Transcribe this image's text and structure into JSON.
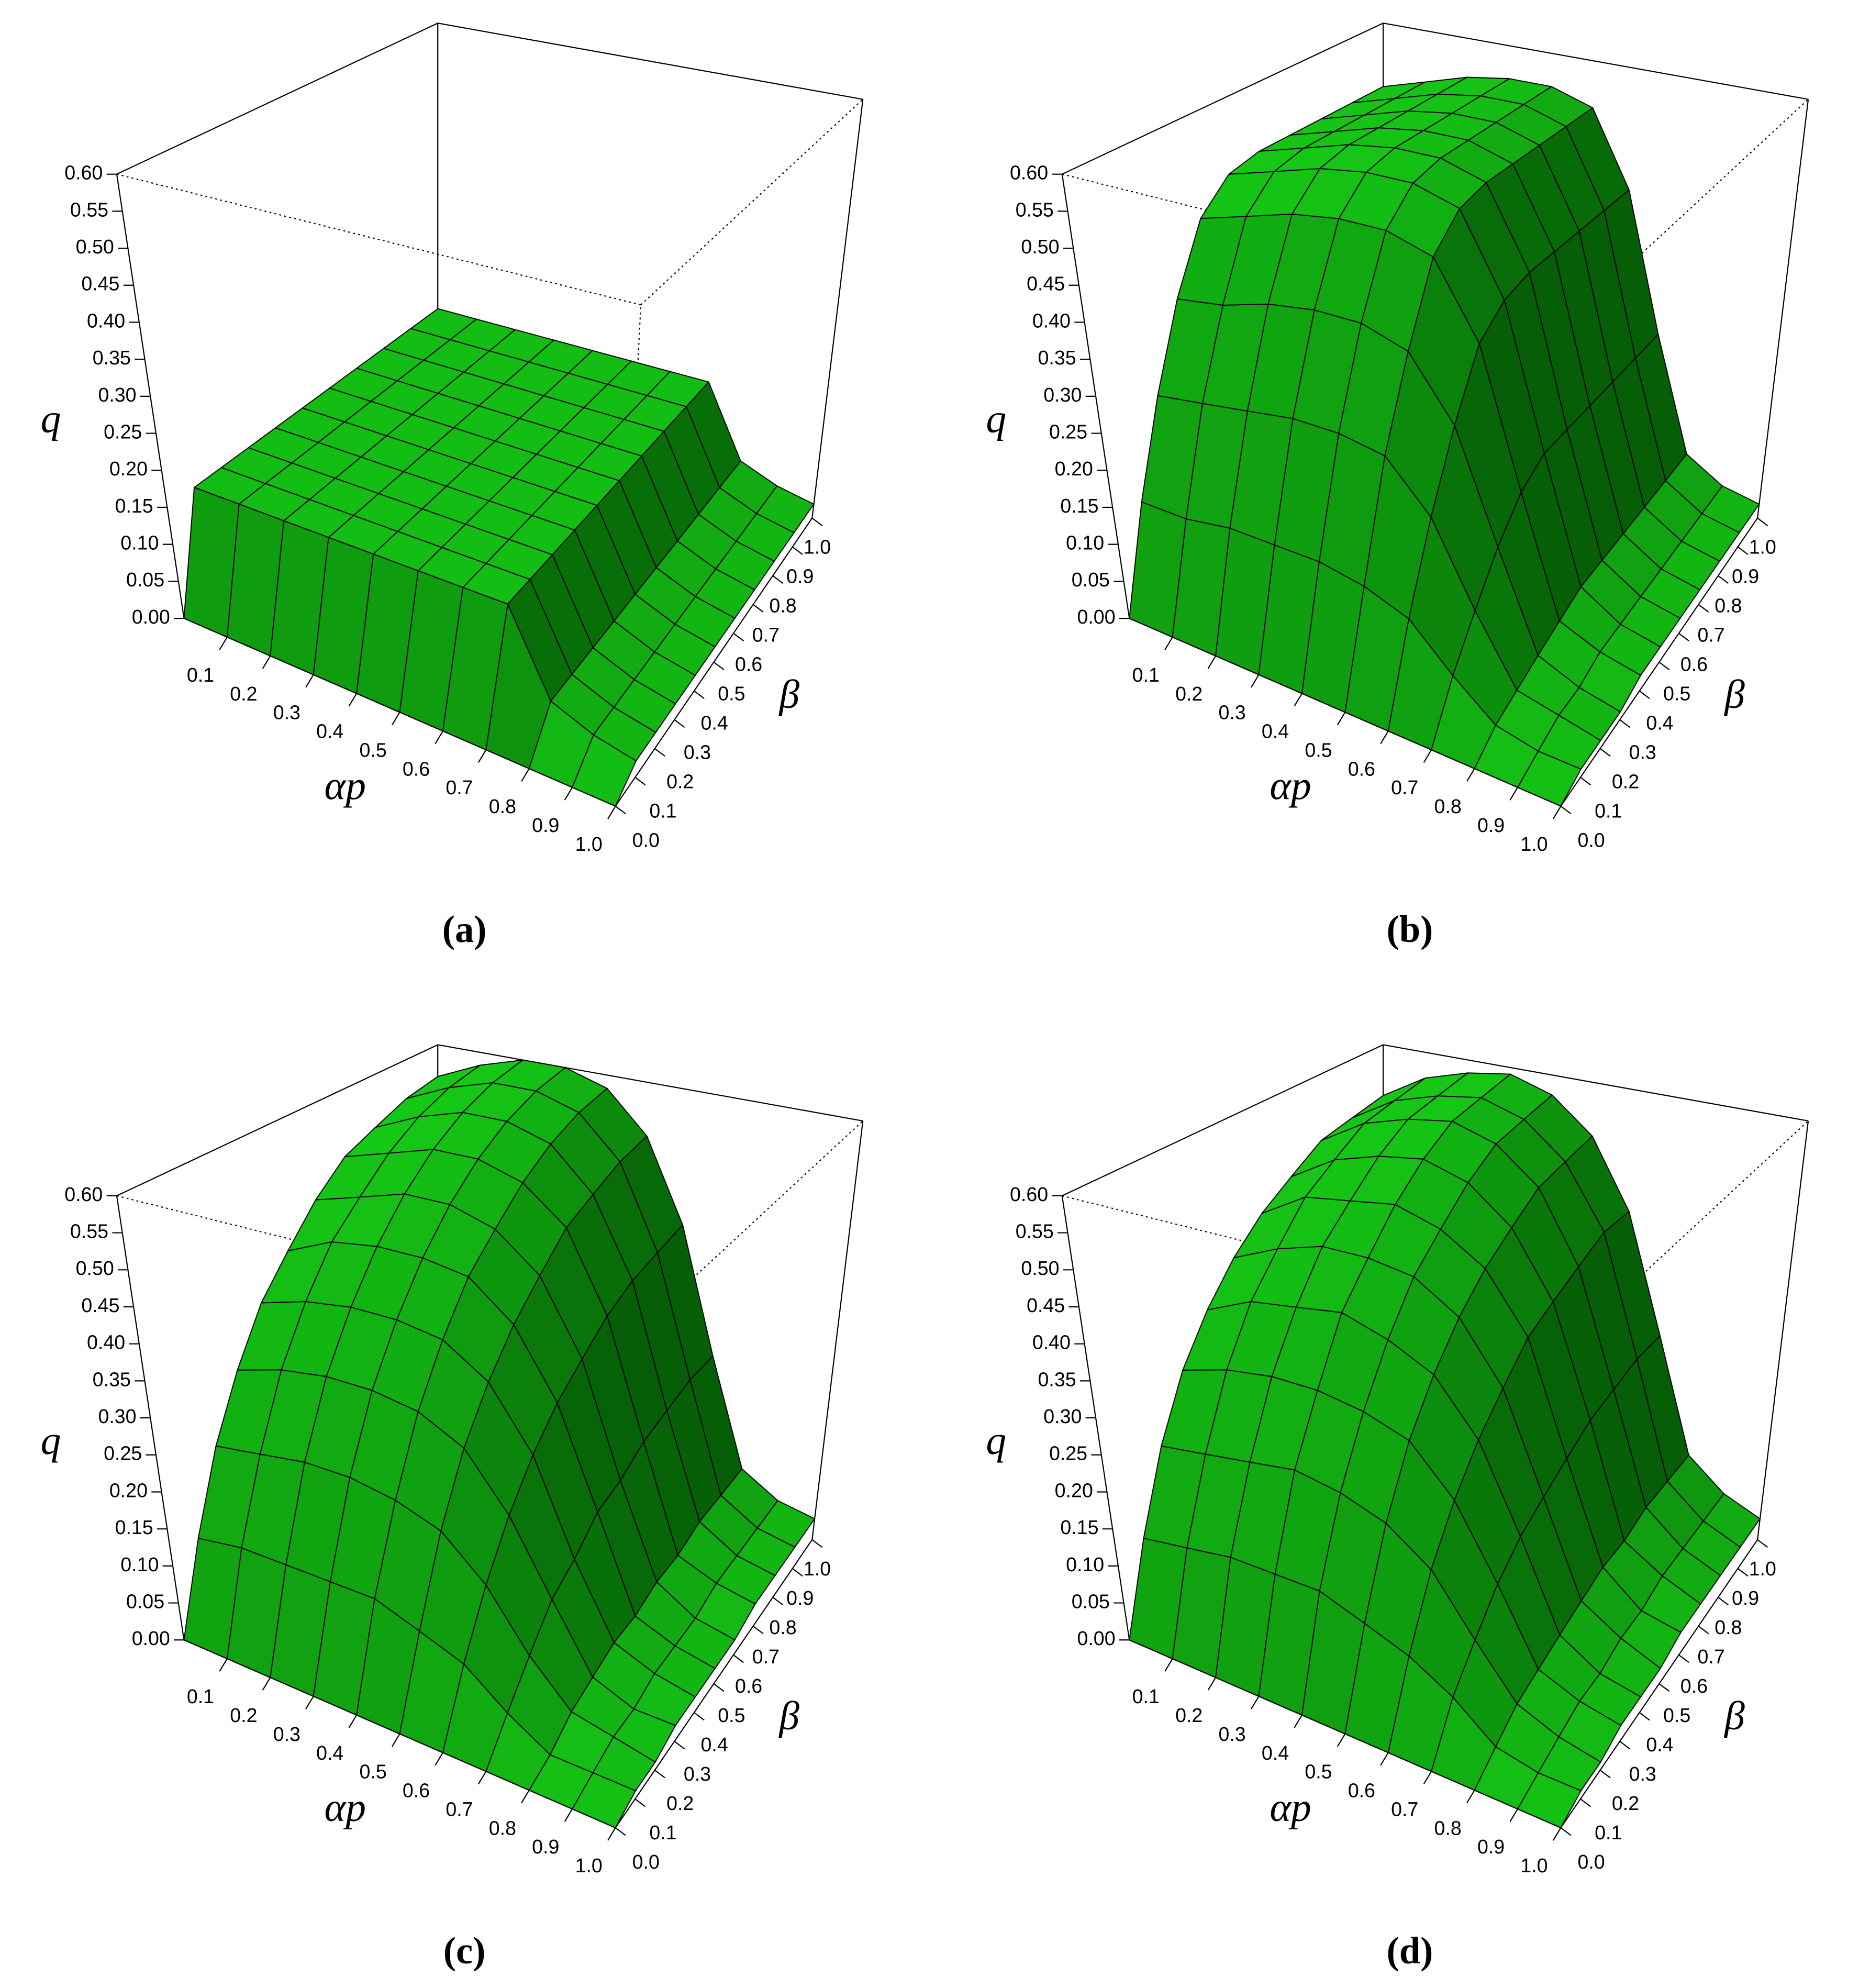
{
  "chart_data": [
    {
      "type": "surface",
      "label": "(a)",
      "xlabel": "αp",
      "ylabel": "β",
      "zlabel": "q",
      "x": [
        0,
        0.1,
        0.2,
        0.3,
        0.4,
        0.5,
        0.6,
        0.7,
        0.8,
        0.9,
        1
      ],
      "y": [
        0,
        0.1,
        0.2,
        0.3,
        0.4,
        0.5,
        0.6,
        0.7,
        0.8,
        0.9,
        1
      ],
      "z": [
        [
          0,
          0.15,
          0.15,
          0.15,
          0.15,
          0.15,
          0.15,
          0.15,
          0.15,
          0.15,
          0.15
        ],
        [
          0,
          0.15,
          0.15,
          0.15,
          0.15,
          0.15,
          0.15,
          0.15,
          0.15,
          0.15,
          0.15
        ],
        [
          0,
          0.15,
          0.15,
          0.15,
          0.15,
          0.15,
          0.15,
          0.15,
          0.15,
          0.15,
          0.15
        ],
        [
          0,
          0.15,
          0.15,
          0.15,
          0.15,
          0.15,
          0.15,
          0.15,
          0.15,
          0.15,
          0.15
        ],
        [
          0,
          0.15,
          0.15,
          0.15,
          0.15,
          0.15,
          0.15,
          0.15,
          0.15,
          0.15,
          0.15
        ],
        [
          0,
          0.15,
          0.15,
          0.15,
          0.15,
          0.15,
          0.15,
          0.15,
          0.15,
          0.15,
          0.15
        ],
        [
          0,
          0.15,
          0.15,
          0.15,
          0.15,
          0.15,
          0.15,
          0.15,
          0.15,
          0.15,
          0.15
        ],
        [
          0,
          0.15,
          0.15,
          0.15,
          0.15,
          0.15,
          0.15,
          0.15,
          0.15,
          0.15,
          0.15
        ],
        [
          0,
          0.05,
          0.05,
          0.05,
          0.05,
          0.05,
          0.05,
          0.05,
          0.05,
          0.05,
          0.05
        ],
        [
          0,
          0.03,
          0.03,
          0.03,
          0.03,
          0.03,
          0.03,
          0.03,
          0.03,
          0.03,
          0.03
        ],
        [
          0,
          0.02,
          0.02,
          0.02,
          0.02,
          0.02,
          0.02,
          0.02,
          0.02,
          0.02,
          0.02
        ]
      ],
      "xlim": [
        0,
        1
      ],
      "ylim": [
        0,
        1
      ],
      "zlim": [
        0,
        0.6
      ],
      "xticks": [
        0.1,
        0.2,
        0.3,
        0.4,
        0.5,
        0.6,
        0.7,
        0.8,
        0.9,
        {
          "value": 1,
          "label": "1.0"
        }
      ],
      "yticks": [
        {
          "value": 0,
          "label": "0.0"
        },
        0.1,
        0.2,
        0.3,
        0.4,
        0.5,
        0.6,
        0.7,
        0.8,
        0.9,
        {
          "value": 1,
          "label": "1.0"
        }
      ],
      "zticks": [
        {
          "value": 0,
          "label": "0.00"
        },
        0.05,
        {
          "value": 0.1,
          "label": "0.10"
        },
        0.15,
        {
          "value": 0.2,
          "label": "0.20"
        },
        0.25,
        {
          "value": 0.3,
          "label": "0.30"
        },
        0.35,
        {
          "value": 0.4,
          "label": "0.40"
        },
        0.45,
        {
          "value": 0.5,
          "label": "0.50"
        },
        0.55,
        {
          "value": 0.6,
          "label": "0.60"
        }
      ],
      "color": "#00b400"
    },
    {
      "type": "surface",
      "label": "(b)",
      "xlabel": "αp",
      "ylabel": "β",
      "zlabel": "q",
      "x": [
        0,
        0.1,
        0.2,
        0.3,
        0.4,
        0.5,
        0.6,
        0.7,
        0.8,
        0.9,
        1
      ],
      "y": [
        0,
        0.1,
        0.2,
        0.3,
        0.4,
        0.5,
        0.6,
        0.7,
        0.8,
        0.9,
        1
      ],
      "z": [
        [
          0,
          0.13,
          0.25,
          0.36,
          0.45,
          0.49,
          0.5,
          0.5,
          0.5,
          0.5,
          0.5
        ],
        [
          0,
          0.13,
          0.26,
          0.37,
          0.47,
          0.51,
          0.52,
          0.52,
          0.52,
          0.52,
          0.52
        ],
        [
          0,
          0.14,
          0.27,
          0.39,
          0.49,
          0.53,
          0.54,
          0.54,
          0.54,
          0.54,
          0.54
        ],
        [
          0,
          0.14,
          0.28,
          0.4,
          0.5,
          0.54,
          0.55,
          0.55,
          0.55,
          0.55,
          0.55
        ],
        [
          0,
          0.14,
          0.28,
          0.4,
          0.5,
          0.54,
          0.55,
          0.55,
          0.55,
          0.55,
          0.55
        ],
        [
          0,
          0.13,
          0.27,
          0.38,
          0.48,
          0.52,
          0.53,
          0.53,
          0.53,
          0.53,
          0.53
        ],
        [
          0,
          0.11,
          0.21,
          0.3,
          0.38,
          0.41,
          0.42,
          0.42,
          0.42,
          0.42,
          0.42
        ],
        [
          0,
          0.06,
          0.11,
          0.16,
          0.2,
          0.22,
          0.22,
          0.22,
          0.22,
          0.22,
          0.22
        ],
        [
          0,
          0.02,
          0.03,
          0.04,
          0.05,
          0.06,
          0.06,
          0.06,
          0.06,
          0.06,
          0.06
        ],
        [
          0,
          0.01,
          0.02,
          0.02,
          0.03,
          0.03,
          0.03,
          0.03,
          0.03,
          0.03,
          0.03
        ],
        [
          0,
          0.01,
          0.01,
          0.01,
          0.02,
          0.02,
          0.02,
          0.02,
          0.02,
          0.02,
          0.02
        ]
      ],
      "xlim": [
        0,
        1
      ],
      "ylim": [
        0,
        1
      ],
      "zlim": [
        0,
        0.6
      ],
      "xticks": [
        0.1,
        0.2,
        0.3,
        0.4,
        0.5,
        0.6,
        0.7,
        0.8,
        0.9,
        {
          "value": 1,
          "label": "1.0"
        }
      ],
      "yticks": [
        {
          "value": 0,
          "label": "0.0"
        },
        0.1,
        0.2,
        0.3,
        0.4,
        0.5,
        0.6,
        0.7,
        0.8,
        0.9,
        {
          "value": 1,
          "label": "1.0"
        }
      ],
      "zticks": [
        {
          "value": 0,
          "label": "0.00"
        },
        0.05,
        {
          "value": 0.1,
          "label": "0.10"
        },
        0.15,
        {
          "value": 0.2,
          "label": "0.20"
        },
        0.25,
        {
          "value": 0.3,
          "label": "0.30"
        },
        0.35,
        {
          "value": 0.4,
          "label": "0.40"
        },
        0.45,
        {
          "value": 0.5,
          "label": "0.50"
        },
        0.55,
        {
          "value": 0.6,
          "label": "0.60"
        }
      ],
      "color": "#00b400"
    },
    {
      "type": "surface",
      "label": "(c)",
      "xlabel": "αp",
      "ylabel": "β",
      "zlabel": "q",
      "x": [
        0,
        0.1,
        0.2,
        0.3,
        0.4,
        0.5,
        0.6,
        0.7,
        0.8,
        0.9,
        1
      ],
      "y": [
        0,
        0.1,
        0.2,
        0.3,
        0.4,
        0.5,
        0.6,
        0.7,
        0.8,
        0.9,
        1
      ],
      "z": [
        [
          0,
          0.11,
          0.21,
          0.29,
          0.36,
          0.41,
          0.46,
          0.5,
          0.52,
          0.54,
          0.55
        ],
        [
          0,
          0.12,
          0.22,
          0.31,
          0.38,
          0.44,
          0.48,
          0.52,
          0.55,
          0.57,
          0.58
        ],
        [
          0,
          0.12,
          0.23,
          0.32,
          0.39,
          0.45,
          0.5,
          0.54,
          0.57,
          0.59,
          0.6
        ],
        [
          0,
          0.12,
          0.23,
          0.32,
          0.39,
          0.45,
          0.5,
          0.54,
          0.57,
          0.59,
          0.6
        ],
        [
          0,
          0.12,
          0.22,
          0.31,
          0.38,
          0.44,
          0.48,
          0.52,
          0.55,
          0.57,
          0.58
        ],
        [
          0,
          0.1,
          0.2,
          0.28,
          0.34,
          0.39,
          0.43,
          0.47,
          0.49,
          0.51,
          0.52
        ],
        [
          0,
          0.08,
          0.15,
          0.21,
          0.26,
          0.3,
          0.33,
          0.36,
          0.38,
          0.39,
          0.4
        ],
        [
          0,
          0.04,
          0.08,
          0.12,
          0.14,
          0.17,
          0.18,
          0.2,
          0.21,
          0.22,
          0.22
        ],
        [
          0,
          0.01,
          0.03,
          0.04,
          0.05,
          0.05,
          0.06,
          0.06,
          0.07,
          0.07,
          0.07
        ],
        [
          0,
          0.01,
          0.02,
          0.02,
          0.03,
          0.03,
          0.03,
          0.04,
          0.04,
          0.04,
          0.04
        ],
        [
          0,
          0.01,
          0.01,
          0.02,
          0.02,
          0.02,
          0.02,
          0.03,
          0.03,
          0.03,
          0.03
        ]
      ],
      "xlim": [
        0,
        1
      ],
      "ylim": [
        0,
        1
      ],
      "zlim": [
        0,
        0.6
      ],
      "xticks": [
        0.1,
        0.2,
        0.3,
        0.4,
        0.5,
        0.6,
        0.7,
        0.8,
        0.9,
        {
          "value": 1,
          "label": "1.0"
        }
      ],
      "yticks": [
        {
          "value": 0,
          "label": "0.0"
        },
        0.1,
        0.2,
        0.3,
        0.4,
        0.5,
        0.6,
        0.7,
        0.8,
        0.9,
        {
          "value": 1,
          "label": "1.0"
        }
      ],
      "zticks": [
        {
          "value": 0,
          "label": "0.00"
        },
        0.05,
        {
          "value": 0.1,
          "label": "0.10"
        },
        0.15,
        {
          "value": 0.2,
          "label": "0.20"
        },
        0.25,
        {
          "value": 0.3,
          "label": "0.30"
        },
        0.35,
        {
          "value": 0.4,
          "label": "0.40"
        },
        0.45,
        {
          "value": 0.5,
          "label": "0.50"
        },
        0.55,
        {
          "value": 0.6,
          "label": "0.60"
        }
      ],
      "color": "#00b400"
    },
    {
      "type": "surface",
      "label": "(d)",
      "xlabel": "αp",
      "ylabel": "β",
      "zlabel": "q",
      "x": [
        0,
        0.1,
        0.2,
        0.3,
        0.4,
        0.5,
        0.6,
        0.7,
        0.8,
        0.9,
        1
      ],
      "y": [
        0,
        0.1,
        0.2,
        0.3,
        0.4,
        0.5,
        0.6,
        0.7,
        0.8,
        0.9,
        1
      ],
      "z": [
        [
          0,
          0.11,
          0.21,
          0.29,
          0.35,
          0.4,
          0.44,
          0.47,
          0.5,
          0.51,
          0.52
        ],
        [
          0,
          0.12,
          0.22,
          0.31,
          0.38,
          0.43,
          0.48,
          0.51,
          0.54,
          0.55,
          0.56
        ],
        [
          0,
          0.13,
          0.23,
          0.32,
          0.39,
          0.45,
          0.49,
          0.53,
          0.56,
          0.57,
          0.58
        ],
        [
          0,
          0.13,
          0.24,
          0.32,
          0.4,
          0.45,
          0.5,
          0.54,
          0.57,
          0.58,
          0.59
        ],
        [
          0,
          0.13,
          0.23,
          0.31,
          0.38,
          0.44,
          0.48,
          0.52,
          0.55,
          0.56,
          0.57
        ],
        [
          0,
          0.11,
          0.21,
          0.29,
          0.35,
          0.4,
          0.44,
          0.47,
          0.5,
          0.51,
          0.52
        ],
        [
          0,
          0.09,
          0.17,
          0.23,
          0.28,
          0.32,
          0.36,
          0.38,
          0.4,
          0.42,
          0.42
        ],
        [
          0,
          0.06,
          0.1,
          0.14,
          0.17,
          0.19,
          0.21,
          0.23,
          0.24,
          0.25,
          0.25
        ],
        [
          0,
          0.02,
          0.04,
          0.05,
          0.06,
          0.07,
          0.08,
          0.08,
          0.09,
          0.09,
          0.09
        ],
        [
          0,
          0.01,
          0.02,
          0.03,
          0.03,
          0.04,
          0.04,
          0.05,
          0.05,
          0.05,
          0.05
        ],
        [
          0,
          0.01,
          0.01,
          0.02,
          0.02,
          0.02,
          0.03,
          0.03,
          0.03,
          0.03,
          0.03
        ]
      ],
      "xlim": [
        0,
        1
      ],
      "ylim": [
        0,
        1
      ],
      "zlim": [
        0,
        0.6
      ],
      "xticks": [
        0.1,
        0.2,
        0.3,
        0.4,
        0.5,
        0.6,
        0.7,
        0.8,
        0.9,
        {
          "value": 1,
          "label": "1.0"
        }
      ],
      "yticks": [
        {
          "value": 0,
          "label": "0.0"
        },
        0.1,
        0.2,
        0.3,
        0.4,
        0.5,
        0.6,
        0.7,
        0.8,
        0.9,
        {
          "value": 1,
          "label": "1.0"
        }
      ],
      "zticks": [
        {
          "value": 0,
          "label": "0.00"
        },
        0.05,
        {
          "value": 0.1,
          "label": "0.10"
        },
        0.15,
        {
          "value": 0.2,
          "label": "0.20"
        },
        0.25,
        {
          "value": 0.3,
          "label": "0.30"
        },
        0.35,
        {
          "value": 0.4,
          "label": "0.40"
        },
        0.45,
        {
          "value": 0.5,
          "label": "0.50"
        },
        0.55,
        {
          "value": 0.6,
          "label": "0.60"
        }
      ],
      "color": "#00b400"
    }
  ]
}
